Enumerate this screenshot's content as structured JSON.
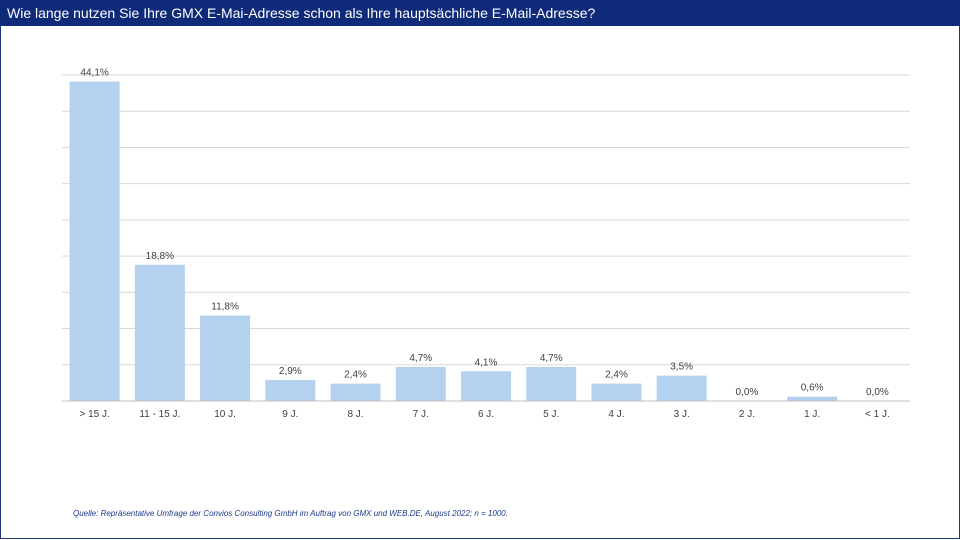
{
  "title": "Wie lange nutzen Sie Ihre GMX E-Mai-Adresse schon als Ihre hauptsächliche E-Mail-Adresse?",
  "source": "Quelle: Repräsentative Umfrage  der Convios Consulting GmbH  im  Auftrag von GMX und  WEB.DE,  August 2022;  n = 1000.",
  "colors": {
    "header": "#0e2a78",
    "bar": "#b4d1ef",
    "grid": "#d9d9d9"
  },
  "chart_data": {
    "type": "bar",
    "categories": [
      "> 15 J.",
      "11 - 15 J.",
      "10 J.",
      "9 J.",
      "8 J.",
      "7 J.",
      "6 J.",
      "5 J.",
      "4 J.",
      "3 J.",
      "2 J.",
      "1 J.",
      "< 1 J."
    ],
    "values": [
      44.1,
      18.8,
      11.8,
      2.9,
      2.4,
      4.7,
      4.1,
      4.7,
      2.4,
      3.5,
      0.0,
      0.6,
      0.0
    ],
    "data_labels": [
      "44,1%",
      "18,8%",
      "11,8%",
      "2,9%",
      "2,4%",
      "4,7%",
      "4,1%",
      "4,7%",
      "2,4%",
      "3,5%",
      "0,0%",
      "0,6%",
      "0,0%"
    ],
    "title": "",
    "xlabel": "",
    "ylabel": "",
    "ylim": [
      0,
      45
    ],
    "grid": true,
    "legend": "none"
  }
}
